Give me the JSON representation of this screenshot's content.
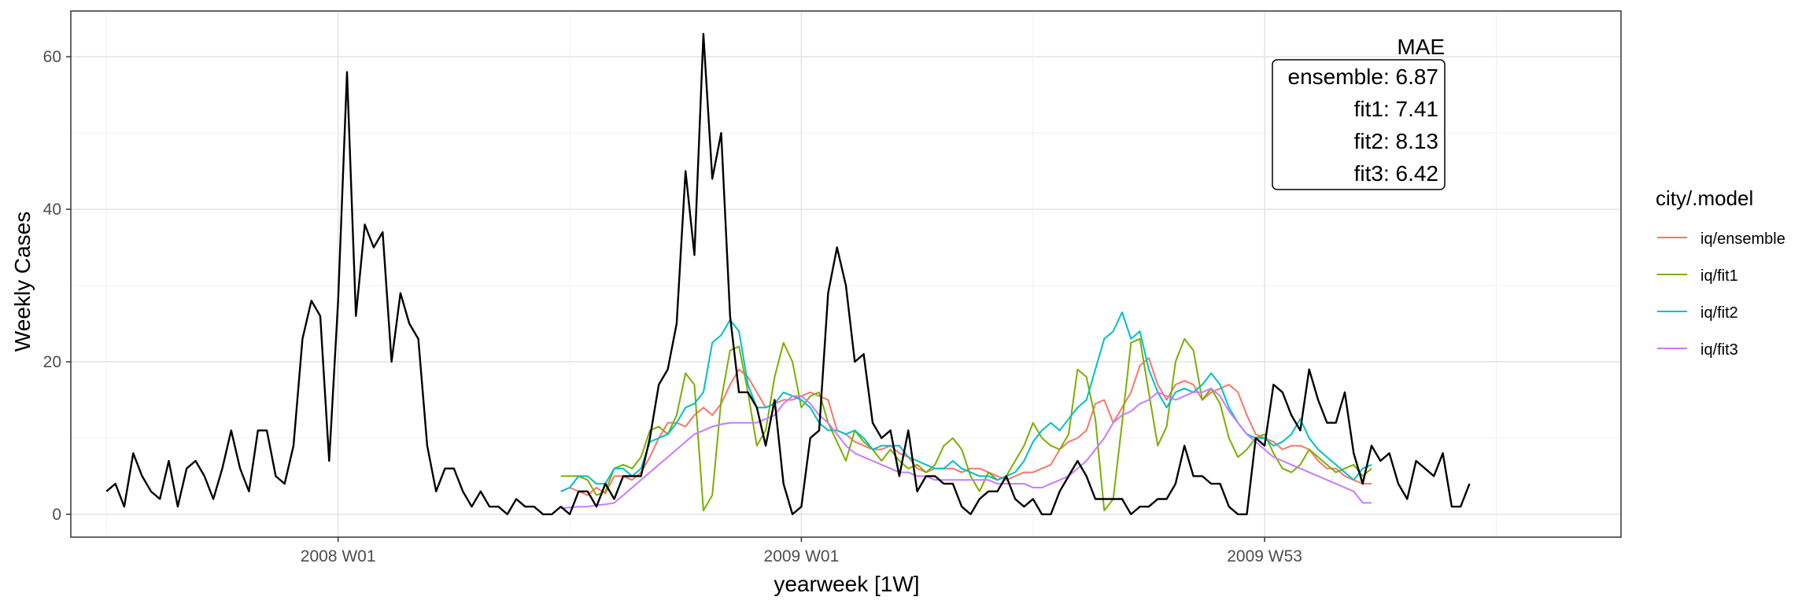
{
  "chart_data": {
    "type": "line",
    "title": "",
    "xlabel": "yearweek [1W]",
    "ylabel": "Weekly Cases",
    "x_ticks": [
      "2008 W01",
      "2009 W01",
      "2009 W53"
    ],
    "x_tick_weeks": [
      0,
      52,
      104
    ],
    "xlim": [
      -30,
      144
    ],
    "ylim": [
      -3,
      66
    ],
    "y_ticks": [
      0,
      20,
      40,
      60
    ],
    "grid": true,
    "legend": {
      "title": "city/.model",
      "placement": "right",
      "entries": [
        {
          "label": "iq/ensemble",
          "color": "#F8766D"
        },
        {
          "label": "iq/fit1",
          "color": "#7CAE00"
        },
        {
          "label": "iq/fit2",
          "color": "#00BFC4"
        },
        {
          "label": "iq/fit3",
          "color": "#C77CFF"
        }
      ]
    },
    "annotation": {
      "header": "MAE",
      "lines": [
        "ensemble: 6.87",
        "fit1: 7.41",
        "fit2: 8.13",
        "fit3: 6.42"
      ]
    },
    "observed": {
      "color": "#000000",
      "start_week": -26,
      "values": [
        3,
        4,
        1,
        8,
        5,
        3,
        2,
        7,
        1,
        6,
        7,
        5,
        2,
        6,
        11,
        6,
        3,
        11,
        11,
        5,
        4,
        9,
        23,
        28,
        26,
        7,
        28,
        58,
        26,
        38,
        35,
        37,
        20,
        29,
        25,
        23,
        9,
        3,
        6,
        6,
        3,
        1,
        3,
        1,
        1,
        0,
        2,
        1,
        1,
        0,
        0,
        1,
        0,
        3,
        3,
        1,
        4,
        2,
        5,
        5,
        5,
        10,
        17,
        19,
        25,
        45,
        34,
        63,
        44,
        50,
        26,
        16,
        16,
        14,
        9,
        15,
        4,
        0,
        1,
        10,
        11,
        29,
        35,
        30,
        20,
        21,
        12,
        10,
        11,
        5,
        11,
        3,
        5,
        5,
        4,
        4,
        1,
        0,
        2,
        3,
        3,
        5,
        2,
        1,
        2,
        0,
        0,
        3,
        5,
        7,
        5,
        2,
        2,
        2,
        2,
        0,
        1,
        1,
        2,
        2,
        4,
        9,
        5,
        5,
        4,
        4,
        1,
        0,
        0,
        10,
        9,
        17,
        16,
        13,
        11,
        19,
        15,
        12,
        12,
        16,
        8,
        4,
        9,
        7,
        8,
        4,
        2,
        7,
        6,
        5,
        8,
        1,
        1,
        4
      ]
    },
    "forecast_start_week": 25,
    "series": [
      {
        "name": "iq/ensemble",
        "color": "#F8766D",
        "values": [
          3.0,
          3.5,
          3.0,
          2.5,
          3.5,
          2.7,
          5.0,
          5.0,
          4.5,
          5.5,
          7.5,
          10.0,
          12.0,
          12.0,
          11.5,
          13.0,
          14.0,
          13.0,
          14.5,
          17.0,
          19.0,
          18.0,
          16.0,
          14.0,
          14.5,
          15.0,
          15.0,
          15.5,
          16.0,
          15.5,
          15.0,
          11.0,
          10.5,
          9.5,
          9.0,
          8.5,
          8.5,
          9.0,
          8.0,
          7.5,
          6.0,
          5.5,
          6.0,
          6.0,
          6.0,
          5.5,
          6.0,
          6.0,
          5.5,
          5.0,
          4.5,
          5.0,
          5.5,
          5.5,
          6.0,
          6.5,
          8.5,
          9.5,
          10.0,
          11.0,
          14.5,
          15.0,
          12.0,
          14.0,
          16.0,
          19.5,
          20.5,
          17.0,
          15.0,
          17.0,
          17.5,
          17.0,
          15.0,
          16.0,
          16.5,
          17.0,
          16.0,
          13.0,
          10.5,
          10.0,
          9.5,
          8.5,
          9.0,
          9.0,
          8.5,
          7.0,
          6.0,
          6.0,
          5.0,
          4.5,
          4.0,
          4.0
        ]
      },
      {
        "name": "iq/fit1",
        "color": "#7CAE00",
        "values": [
          5.0,
          5.0,
          5.0,
          4.5,
          2.5,
          3.0,
          6.0,
          6.5,
          6.0,
          7.5,
          11.0,
          11.5,
          10.5,
          13.0,
          18.5,
          17.0,
          0.5,
          2.5,
          15.0,
          21.5,
          22.0,
          16.0,
          9.0,
          11.0,
          18.0,
          22.5,
          20.0,
          14.0,
          15.5,
          16.0,
          12.0,
          9.5,
          7.0,
          11.0,
          9.5,
          8.5,
          7.0,
          8.5,
          7.0,
          6.0,
          6.5,
          5.5,
          6.5,
          9.0,
          10.0,
          8.5,
          5.0,
          3.0,
          5.5,
          4.5,
          5.0,
          7.0,
          9.0,
          12.0,
          10.0,
          9.0,
          8.5,
          10.5,
          19.0,
          18.0,
          12.5,
          0.5,
          2.0,
          12.0,
          22.5,
          23.0,
          16.0,
          9.0,
          11.5,
          20.0,
          23.0,
          21.5,
          15.0,
          16.5,
          14.5,
          10.0,
          7.5,
          8.5,
          10.0,
          10.5,
          8.0,
          6.0,
          5.5,
          6.5,
          8.5,
          7.5,
          6.5,
          5.5,
          6.0,
          6.5,
          5.0,
          6.0
        ]
      },
      {
        "name": "iq/fit2",
        "color": "#00BFC4",
        "values": [
          3.0,
          3.5,
          5.0,
          5.0,
          4.0,
          4.0,
          6.0,
          6.0,
          5.0,
          6.0,
          9.5,
          10.0,
          10.5,
          12.0,
          14.0,
          14.5,
          16.0,
          22.5,
          23.5,
          25.5,
          24.0,
          17.0,
          14.0,
          14.0,
          14.5,
          16.0,
          15.5,
          15.0,
          14.0,
          12.0,
          11.0,
          11.0,
          10.5,
          11.0,
          10.0,
          8.5,
          9.0,
          9.0,
          9.0,
          7.5,
          7.0,
          6.5,
          6.0,
          6.0,
          7.0,
          6.0,
          5.5,
          5.0,
          5.0,
          4.5,
          5.0,
          5.5,
          7.0,
          9.5,
          11.0,
          12.0,
          11.0,
          12.5,
          14.0,
          15.0,
          19.0,
          23.0,
          24.0,
          26.5,
          23.0,
          24.0,
          19.0,
          16.0,
          14.0,
          16.0,
          16.5,
          16.0,
          17.0,
          18.5,
          17.0,
          14.0,
          12.0,
          10.5,
          10.0,
          10.0,
          9.0,
          9.5,
          10.5,
          12.5,
          10.0,
          8.5,
          7.5,
          6.5,
          5.5,
          4.5,
          6.0,
          6.5
        ]
      },
      {
        "name": "iq/fit3",
        "color": "#C77CFF",
        "values": [
          0.8,
          0.9,
          1.0,
          1.0,
          1.2,
          1.3,
          1.5,
          2.5,
          3.5,
          4.5,
          5.5,
          6.5,
          7.5,
          8.5,
          9.5,
          10.5,
          11.0,
          11.5,
          11.8,
          12.0,
          12.0,
          12.0,
          12.0,
          12.5,
          13.0,
          14.5,
          15.5,
          15.5,
          14.5,
          13.0,
          12.0,
          10.5,
          9.0,
          8.0,
          7.5,
          7.0,
          6.5,
          6.0,
          5.5,
          5.5,
          5.0,
          5.0,
          4.5,
          4.5,
          4.5,
          4.5,
          4.5,
          4.5,
          4.5,
          4.0,
          4.0,
          4.0,
          4.0,
          3.5,
          3.5,
          4.0,
          4.5,
          5.0,
          6.0,
          7.0,
          8.5,
          10.0,
          12.0,
          13.0,
          13.5,
          14.5,
          15.0,
          16.0,
          15.5,
          15.0,
          15.5,
          16.0,
          16.0,
          16.5,
          15.5,
          13.5,
          12.0,
          10.5,
          9.5,
          8.5,
          7.5,
          7.0,
          6.5,
          6.0,
          5.5,
          5.0,
          4.5,
          4.0,
          3.5,
          3.0,
          1.5,
          1.5
        ]
      }
    ]
  }
}
